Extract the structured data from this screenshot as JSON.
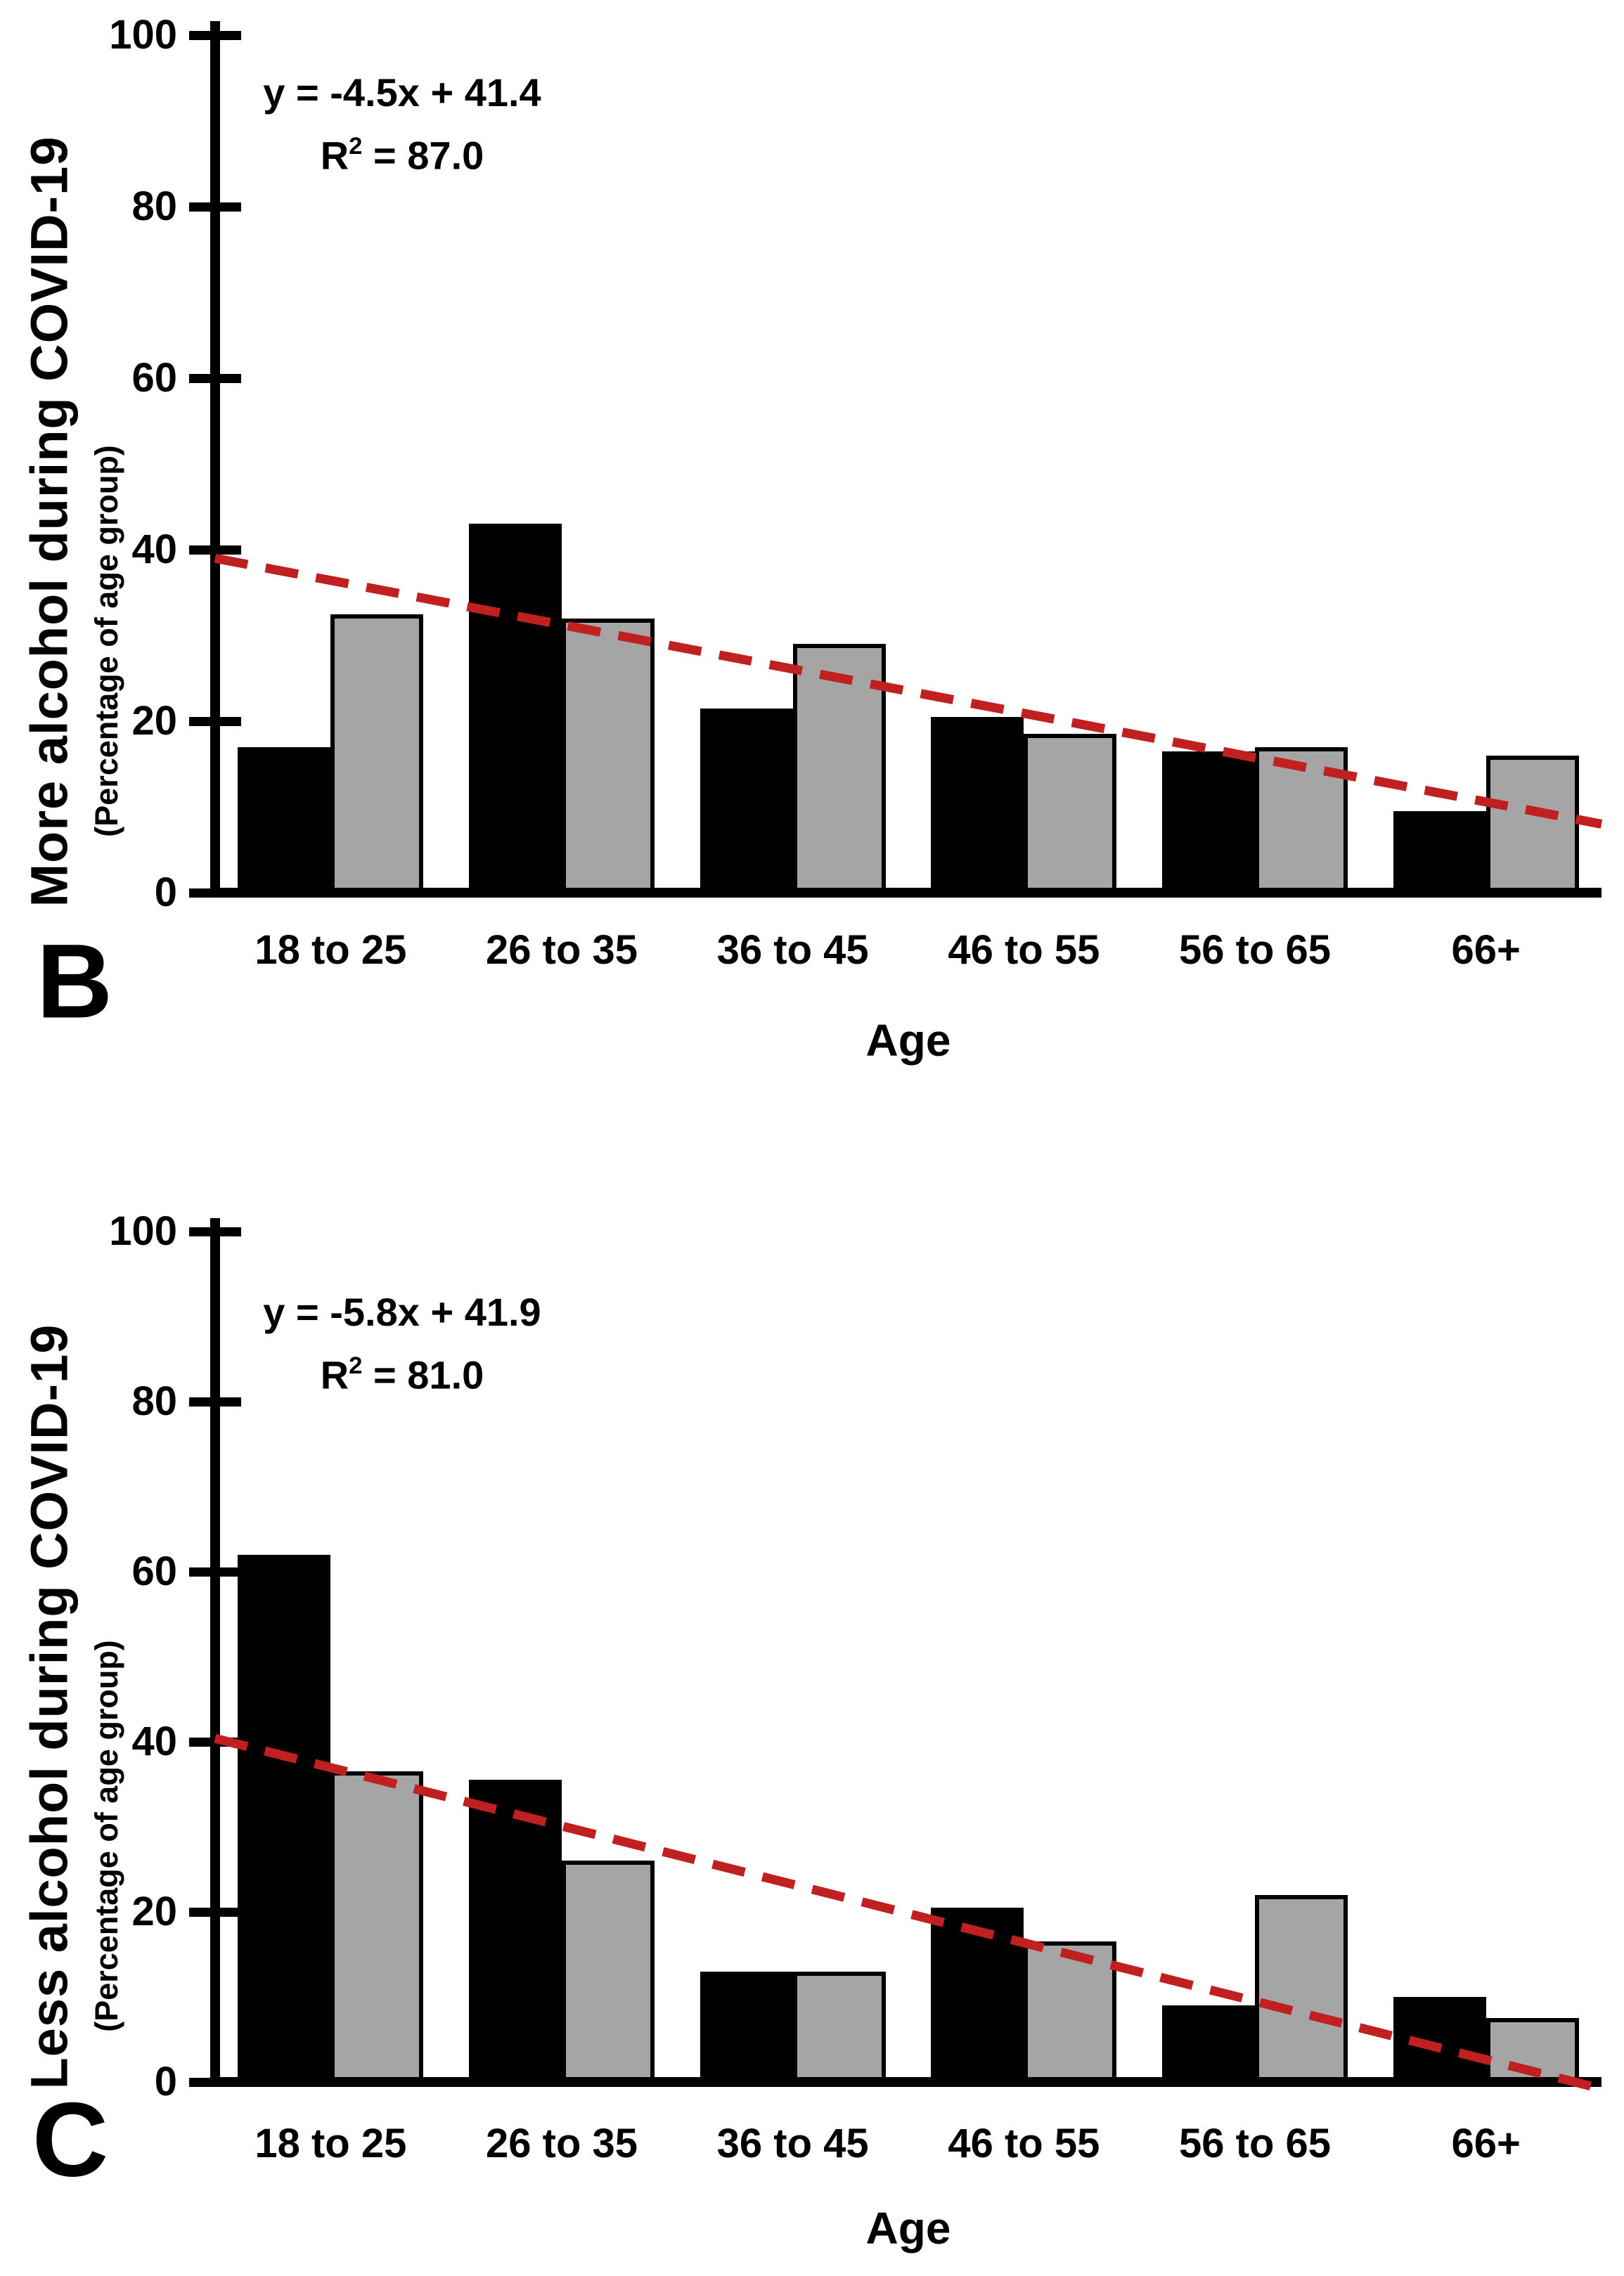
{
  "page": {
    "background": "#ffffff",
    "description_text_visible": false
  },
  "colors": {
    "bar_black": "#000000",
    "bar_gray": "#a5a5a5",
    "bar_border": "#000000",
    "axis": "#000000",
    "trendline_red": "#c02020",
    "text": "#000000"
  },
  "chart_data": [
    {
      "type": "bar",
      "panel_letter": "B",
      "ylabel": "More alcohol during COVID-19",
      "ylabel_sub": "(Percentage of age group)",
      "xlabel": "Age",
      "categories": [
        "18 to 25",
        "26 to 35",
        "36 to 45",
        "46 to 55",
        "56 to 65",
        "66+"
      ],
      "series": [
        {
          "name": "black",
          "color": "#000000",
          "values": [
            17,
            43,
            21.5,
            20.5,
            16.5,
            9.5
          ]
        },
        {
          "name": "gray",
          "color": "#a5a5a5",
          "values": [
            32.5,
            32,
            29,
            18.5,
            17,
            16
          ]
        }
      ],
      "ylim": [
        0,
        100
      ],
      "yticks": [
        "0",
        "20",
        "40",
        "60",
        "80",
        "100"
      ],
      "grid": false,
      "legend": "none",
      "equation": "y = -4.5x + 41.4",
      "r_squared": {
        "base": "R",
        "sup": "2",
        "rest": " = 87.0"
      },
      "trendline": {
        "type": "linear",
        "style": "dashed",
        "color": "#c02020",
        "start_value": 39,
        "end_value": 8
      }
    },
    {
      "type": "bar",
      "panel_letter": "C",
      "ylabel": "Less alcohol during COVID-19",
      "ylabel_sub": "(Percentage of age group)",
      "xlabel": "Age",
      "categories": [
        "18 to 25",
        "26 to 35",
        "36 to 45",
        "46 to 55",
        "56 to 65",
        "66+"
      ],
      "series": [
        {
          "name": "black",
          "color": "#000000",
          "values": [
            62,
            35.5,
            13,
            20.5,
            9,
            10
          ]
        },
        {
          "name": "gray",
          "color": "#a5a5a5",
          "values": [
            36.5,
            26,
            13,
            16.5,
            22,
            7.5
          ]
        }
      ],
      "ylim": [
        0,
        100
      ],
      "yticks": [
        "0",
        "20",
        "40",
        "60",
        "80",
        "100"
      ],
      "grid": false,
      "legend": "none",
      "equation": "y = -5.8x + 41.9",
      "r_squared": {
        "base": "R",
        "sup": "2",
        "rest": " = 81.0"
      },
      "trendline": {
        "type": "linear",
        "style": "dashed",
        "color": "#c02020",
        "start_value": 40.4,
        "end_value": -0.8
      }
    }
  ]
}
